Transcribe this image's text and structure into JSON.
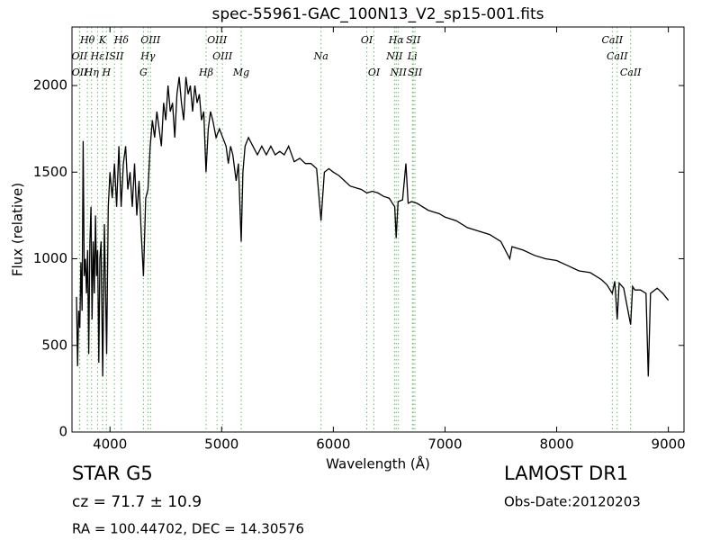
{
  "chart_data": {
    "type": "line",
    "title": "spec-55961-GAC_100N13_V2_sp15-001.fits",
    "x_label": "Wavelength (Å)",
    "y_label": "Flux (relative)",
    "xlim": [
      3660,
      9140
    ],
    "ylim": [
      0,
      2338
    ],
    "xticks": [
      4000,
      5000,
      6000,
      7000,
      8000,
      9000
    ],
    "yticks": [
      0,
      500,
      1000,
      1500,
      2000
    ],
    "color": "#000000",
    "line_color": "#66bb66",
    "x": [
      3700,
      3710,
      3720,
      3730,
      3740,
      3750,
      3760,
      3770,
      3780,
      3790,
      3800,
      3810,
      3820,
      3830,
      3840,
      3850,
      3860,
      3870,
      3880,
      3890,
      3900,
      3910,
      3920,
      3935,
      3950,
      3970,
      3985,
      4000,
      4020,
      4040,
      4060,
      4080,
      4100,
      4120,
      4140,
      4160,
      4180,
      4200,
      4220,
      4240,
      4260,
      4280,
      4300,
      4320,
      4340,
      4360,
      4380,
      4400,
      4420,
      4440,
      4460,
      4480,
      4500,
      4520,
      4540,
      4560,
      4580,
      4600,
      4620,
      4640,
      4660,
      4680,
      4700,
      4720,
      4740,
      4760,
      4780,
      4800,
      4820,
      4840,
      4860,
      4880,
      4900,
      4920,
      4950,
      4980,
      5010,
      5040,
      5060,
      5080,
      5100,
      5130,
      5150,
      5175,
      5190,
      5210,
      5240,
      5280,
      5320,
      5360,
      5400,
      5440,
      5480,
      5520,
      5560,
      5600,
      5650,
      5700,
      5750,
      5800,
      5850,
      5890,
      5920,
      5960,
      6000,
      6050,
      6100,
      6150,
      6200,
      6250,
      6300,
      6350,
      6400,
      6450,
      6500,
      6550,
      6563,
      6580,
      6620,
      6650,
      6670,
      6700,
      6750,
      6800,
      6850,
      6900,
      6950,
      7000,
      7100,
      7200,
      7300,
      7400,
      7500,
      7580,
      7600,
      7700,
      7800,
      7900,
      8000,
      8100,
      8200,
      8300,
      8400,
      8450,
      8498,
      8520,
      8542,
      8560,
      8600,
      8662,
      8680,
      8700,
      8750,
      8800,
      8820,
      8840,
      8900,
      8950,
      9000
    ],
    "values": [
      780,
      380,
      700,
      600,
      980,
      700,
      1680,
      900,
      1000,
      800,
      1050,
      450,
      1100,
      1300,
      650,
      1100,
      800,
      1250,
      900,
      1050,
      400,
      1000,
      1100,
      320,
      1200,
      450,
      1300,
      1500,
      1350,
      1550,
      1300,
      1650,
      1300,
      1550,
      1650,
      1400,
      1500,
      1300,
      1550,
      1250,
      1450,
      1150,
      900,
      1350,
      1400,
      1650,
      1800,
      1700,
      1850,
      1750,
      1650,
      1900,
      1800,
      2000,
      1850,
      1900,
      1700,
      1950,
      2050,
      1900,
      1800,
      2050,
      1950,
      2000,
      1850,
      2000,
      1900,
      1950,
      1800,
      1850,
      1500,
      1750,
      1850,
      1800,
      1700,
      1750,
      1700,
      1650,
      1550,
      1650,
      1600,
      1450,
      1550,
      1100,
      1500,
      1650,
      1700,
      1650,
      1600,
      1650,
      1600,
      1650,
      1600,
      1620,
      1600,
      1650,
      1560,
      1580,
      1550,
      1550,
      1520,
      1220,
      1500,
      1520,
      1500,
      1480,
      1450,
      1420,
      1410,
      1400,
      1380,
      1390,
      1380,
      1360,
      1350,
      1300,
      1120,
      1330,
      1340,
      1550,
      1320,
      1330,
      1320,
      1300,
      1280,
      1270,
      1260,
      1240,
      1220,
      1180,
      1160,
      1140,
      1100,
      1000,
      1070,
      1050,
      1020,
      1000,
      990,
      960,
      930,
      920,
      880,
      850,
      800,
      870,
      650,
      860,
      830,
      620,
      840,
      820,
      820,
      800,
      320,
      800,
      830,
      800,
      760
    ],
    "spectral_lines": [
      [
        {
          "label": "Hθ",
          "wavelength": 3798
        },
        {
          "label": "K",
          "wavelength": 3934
        },
        {
          "label": "Hδ",
          "wavelength": 4102
        },
        {
          "label": "OIII",
          "wavelength": 4363
        },
        {
          "label": "OIII",
          "wavelength": 4959
        },
        {
          "label": "OI",
          "wavelength": 6300
        },
        {
          "label": "Hα",
          "wavelength": 6563
        },
        {
          "label": "SII",
          "wavelength": 6716
        },
        {
          "label": "CaII",
          "wavelength": 8498
        }
      ],
      [
        {
          "label": "OII",
          "wavelength": 3727
        },
        {
          "label": "Hε",
          "wavelength": 3889
        },
        {
          "label": "ISII",
          "wavelength": 4040
        },
        {
          "label": "Hγ",
          "wavelength": 4340
        },
        {
          "label": "OIII",
          "wavelength": 5007
        },
        {
          "label": "Na",
          "wavelength": 5890
        },
        {
          "label": "NII",
          "wavelength": 6548
        },
        {
          "label": "Li",
          "wavelength": 6708
        },
        {
          "label": "CaII",
          "wavelength": 8542
        }
      ],
      [
        {
          "label": "OII",
          "wavelength": 3729
        },
        {
          "label": "Hη",
          "wavelength": 3835
        },
        {
          "label": "H",
          "wavelength": 3969
        },
        {
          "label": "G",
          "wavelength": 4300
        },
        {
          "label": "Hβ",
          "wavelength": 4861
        },
        {
          "label": "Mg",
          "wavelength": 5175
        },
        {
          "label": "OI",
          "wavelength": 6364
        },
        {
          "label": "NII",
          "wavelength": 6583
        },
        {
          "label": "SII",
          "wavelength": 6731
        },
        {
          "label": "CaII",
          "wavelength": 8662
        }
      ]
    ],
    "annotations": {
      "object": "STAR   G5",
      "cz": "cz = 71.7 ± 10.9",
      "coords": "RA = 100.44702, DEC = 14.30576",
      "survey": "LAMOST DR1",
      "date": "Obs-Date:20120203"
    }
  }
}
